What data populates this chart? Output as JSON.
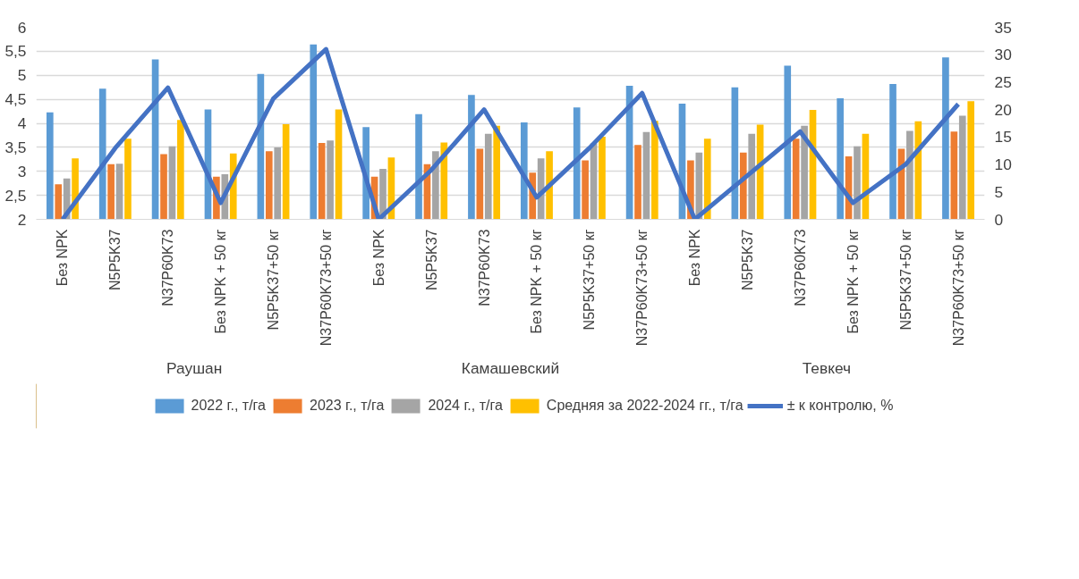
{
  "chart_data": {
    "type": "bar",
    "categories": [
      "Без NPK",
      "N5P5K37",
      "N37P60K73",
      "Без NPK + 50 кг",
      "N5P5K37+50 кг",
      "N37P60K73+50 кг",
      "Без NPK",
      "N5P5K37",
      "N37P60K73",
      "Без NPK + 50 кг",
      "N5P5K37+50 кг",
      "N37P60K73+50 кг",
      "Без NPK",
      "N5P5K37",
      "N37P60K73",
      "Без NPK + 50 кг",
      "N5P5K37+50 кг",
      "N37P60K73+50 кг"
    ],
    "annotations": [
      "Раушан",
      "Камашевский",
      "Тевкеч"
    ],
    "series": [
      {
        "name": "2022 г., т/га",
        "color": "#5b9bd5",
        "values": [
          4.23,
          4.72,
          5.33,
          4.29,
          5.03,
          5.64,
          3.92,
          4.19,
          4.59,
          4.02,
          4.33,
          4.78,
          4.41,
          4.75,
          5.2,
          4.52,
          4.82,
          5.37
        ]
      },
      {
        "name": "2023 г., т/га",
        "color": "#ed7d31",
        "values": [
          2.73,
          3.15,
          3.36,
          2.89,
          3.42,
          3.59,
          2.89,
          3.15,
          3.47,
          2.97,
          3.23,
          3.55,
          3.23,
          3.39,
          3.68,
          3.31,
          3.47,
          3.83
        ]
      },
      {
        "name": "2024 г., т/га",
        "color": "#a5a5a5",
        "values": [
          2.85,
          3.16,
          3.52,
          2.94,
          3.5,
          3.64,
          3.05,
          3.42,
          3.78,
          3.27,
          3.58,
          3.82,
          3.39,
          3.78,
          3.95,
          3.52,
          3.84,
          4.16
        ]
      },
      {
        "name": "Средняя за 2022-2024 гг., т/га",
        "color": "#ffc000",
        "values": [
          3.27,
          3.68,
          4.07,
          3.37,
          3.98,
          4.29,
          3.29,
          3.6,
          3.95,
          3.42,
          3.72,
          4.05,
          3.68,
          3.97,
          4.28,
          3.78,
          4.04,
          4.46
        ]
      },
      {
        "name": "± к контролю, %",
        "type": "line",
        "axis": "y2",
        "color": "#4472c4",
        "values": [
          0,
          13,
          24,
          3,
          22,
          31,
          0,
          9,
          20,
          4,
          13,
          23,
          0,
          8,
          16,
          3,
          10,
          21
        ]
      }
    ],
    "ylim": [
      2,
      6
    ],
    "yticks": [
      2,
      {
        "value": 2.5,
        "label": "2,5"
      },
      3,
      {
        "value": 3.5,
        "label": "3,5"
      },
      4,
      {
        "value": 4.5,
        "label": "4,5"
      },
      5,
      {
        "value": 5.5,
        "label": "5,5"
      },
      6
    ],
    "y2lim": [
      0,
      35
    ],
    "y2ticks": [
      0,
      5,
      10,
      15,
      20,
      25,
      30,
      35
    ],
    "grid": "y",
    "legend": "bottom"
  }
}
